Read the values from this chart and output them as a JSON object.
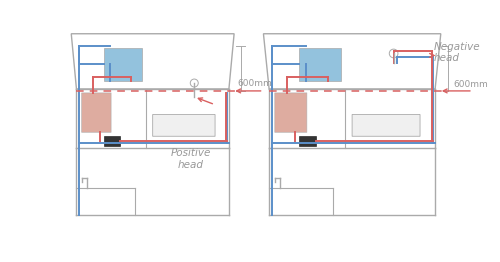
{
  "bg_color": "#ffffff",
  "wall_color": "#aaaaaa",
  "blue_pipe": "#5b8fc9",
  "red_pipe": "#d96060",
  "tank_fill": "#80b8d8",
  "cylinder_fill": "#d49080",
  "pump_color": "#333333",
  "bath_fill": "#f0f0f0",
  "label_600": "600mm",
  "label_pos": "Positive\nhead",
  "label_neg": "Negative\nhead",
  "text_color": "#999999",
  "arrow_color": "#d96060"
}
